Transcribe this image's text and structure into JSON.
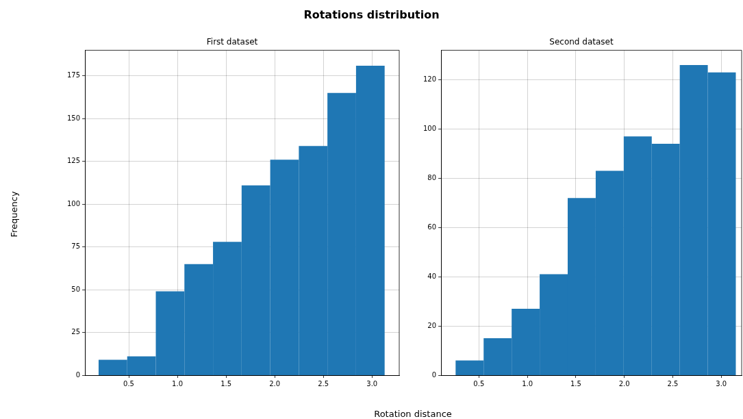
{
  "chart_data": [
    {
      "type": "histogram",
      "title": "First dataset",
      "annotations": [
        "Rotations distribution"
      ],
      "xlabel": "Rotation distance",
      "ylabel": "Frequency",
      "bins": [
        0.19,
        0.484,
        0.778,
        1.072,
        1.366,
        1.66,
        1.954,
        2.248,
        2.542,
        2.836,
        3.13
      ],
      "values": [
        9,
        11,
        49,
        65,
        78,
        111,
        126,
        134,
        165,
        181
      ],
      "color": "#1f77b4",
      "xlim": [
        0.05,
        3.28
      ],
      "xticks": [
        0.5,
        {
          "value": 1,
          "label": "1.0"
        },
        1.5,
        {
          "value": 2,
          "label": "2.0"
        },
        2.5,
        {
          "value": 3,
          "label": "3.0"
        }
      ],
      "ylim": [
        0,
        190
      ],
      "yticks": [
        0,
        25,
        50,
        75,
        100,
        125,
        150,
        175
      ],
      "grid": true
    },
    {
      "type": "histogram",
      "title": "Second dataset",
      "bins": [
        0.26,
        0.549,
        0.838,
        1.127,
        1.416,
        1.705,
        1.994,
        2.283,
        2.572,
        2.861,
        3.15
      ],
      "values": [
        6,
        15,
        27,
        41,
        72,
        83,
        97,
        94,
        126,
        123
      ],
      "color": "#1f77b4",
      "xlim": [
        0.11,
        3.21
      ],
      "xticks": [
        0.5,
        {
          "value": 1,
          "label": "1.0"
        },
        1.5,
        {
          "value": 2,
          "label": "2.0"
        },
        2.5,
        {
          "value": 3,
          "label": "3.0"
        }
      ],
      "ylim": [
        0,
        132
      ],
      "yticks": [
        0,
        20,
        40,
        60,
        80,
        100,
        120
      ],
      "grid": true
    }
  ]
}
